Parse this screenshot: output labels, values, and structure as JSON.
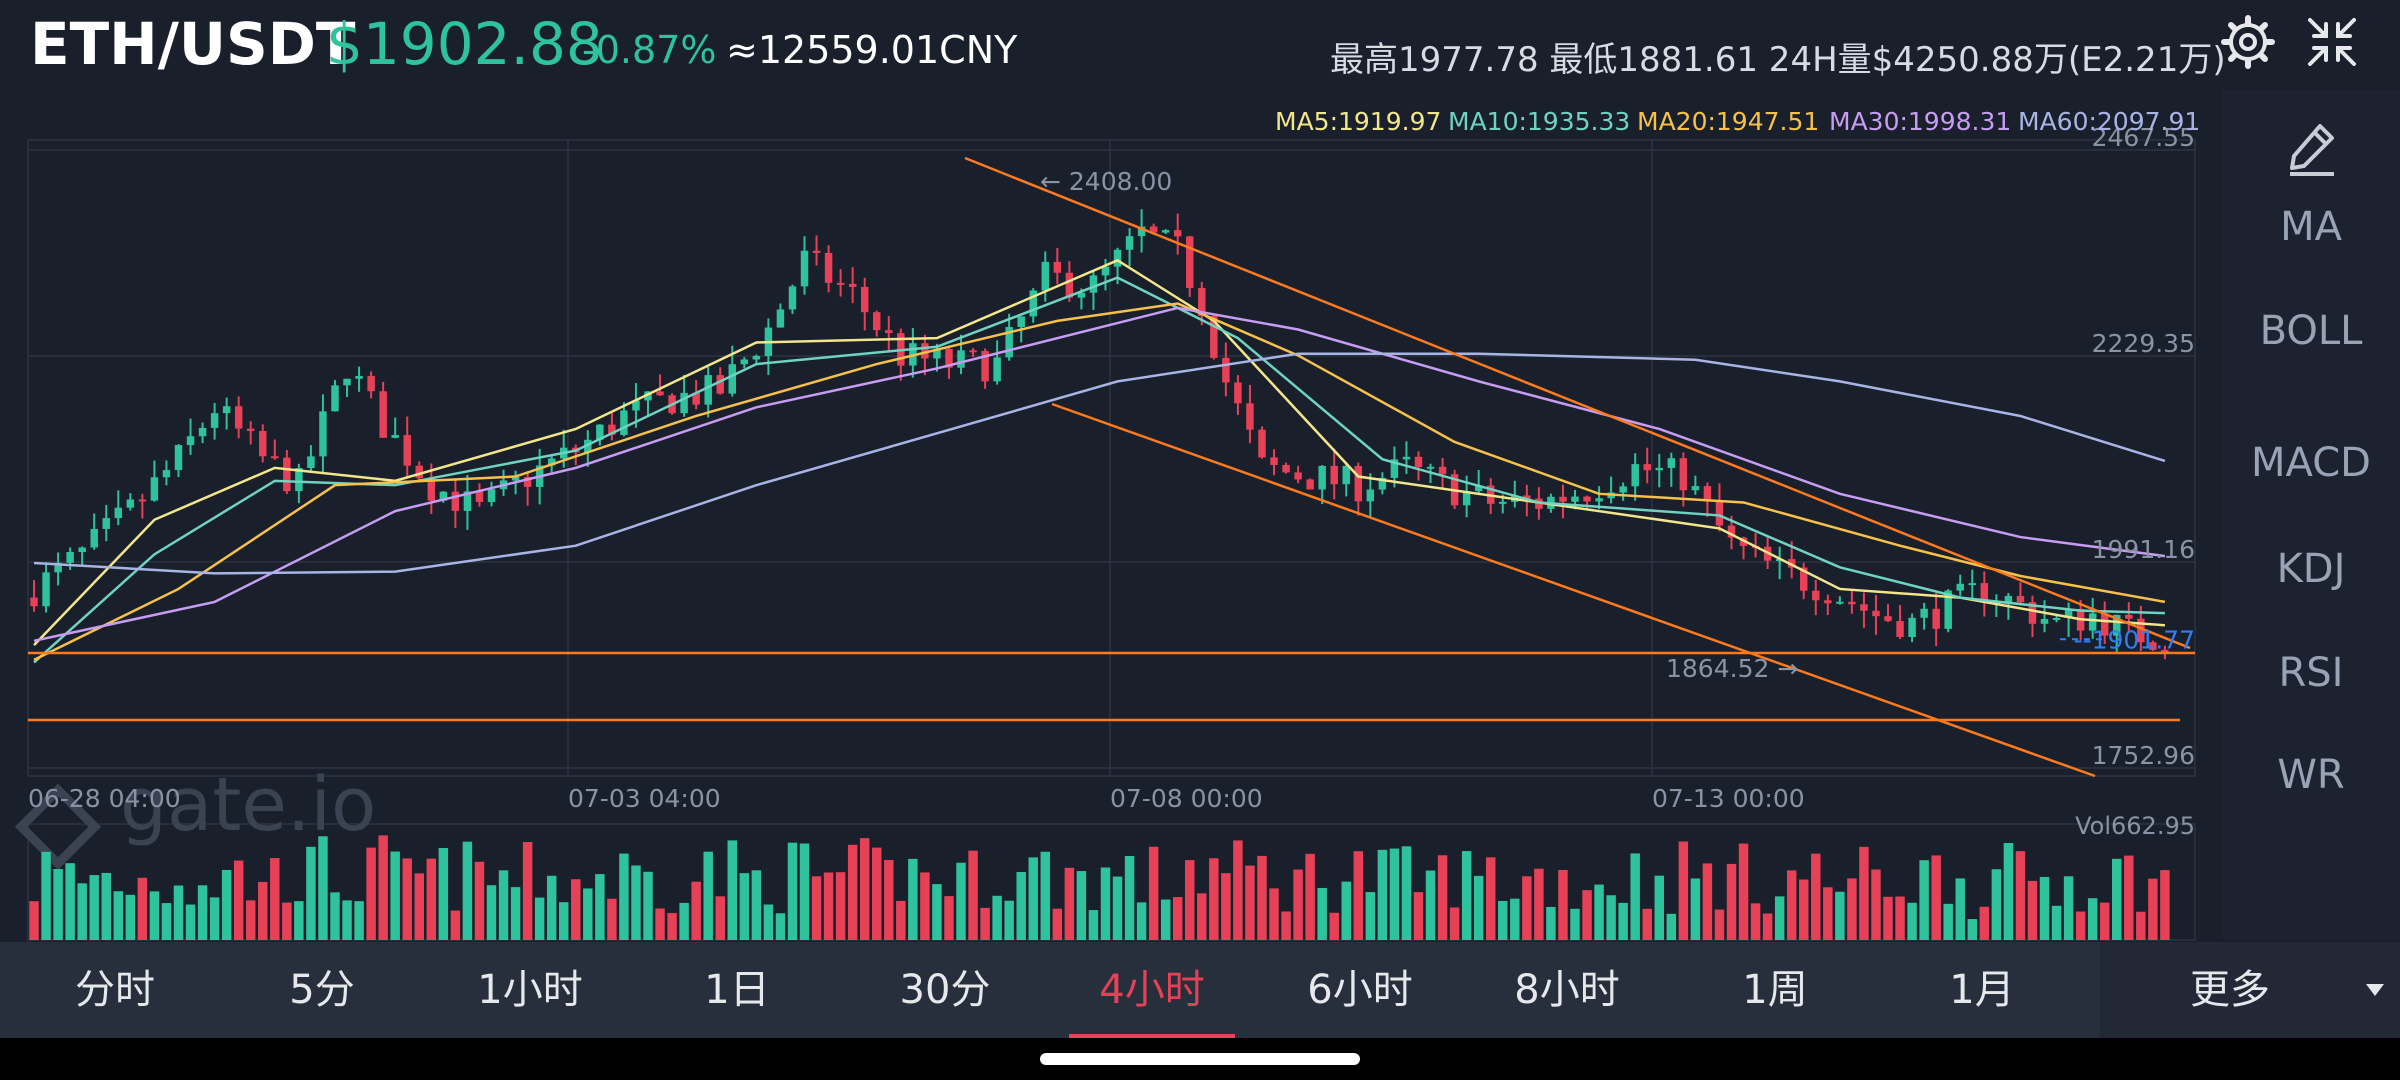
{
  "header": {
    "pair": "ETH/USDT",
    "price": "$1902.88",
    "change": "-0.87%",
    "cny": "≈12559.01CNY",
    "stats": "最高1977.78  最低1881.61  24H量$4250.88万(E2.21万)",
    "icons": [
      "gear-icon",
      "collapse-icon"
    ]
  },
  "colors": {
    "up": "#2ec39c",
    "down": "#e64156",
    "ma5": "#f2e68b",
    "ma10": "#6fd3c2",
    "ma20": "#f6c14a",
    "ma30": "#c79cf2",
    "ma60": "#a9b4e6",
    "trend": "#ff7a1c",
    "background": "#1a1f2c"
  },
  "ma_legend": [
    {
      "label": "MA5:1919.97",
      "color": "#f2e68b"
    },
    {
      "label": "MA10:1935.33",
      "color": "#6fd3c2"
    },
    {
      "label": "MA20:1947.51",
      "color": "#f6c14a"
    },
    {
      "label": "MA30:1998.31",
      "color": "#c79cf2"
    },
    {
      "label": "MA60:2097.91",
      "color": "#a9b4e6"
    }
  ],
  "chart_data": {
    "type": "candlestick",
    "interval": "4小时",
    "y_ticks": [
      "2467.55",
      "2229.35",
      "1991.16",
      "1752.96"
    ],
    "ylim": [
      1752.96,
      2467.55
    ],
    "x_ticks": [
      "06-28 04:00",
      "07-03 04:00",
      "07-08 00:00",
      "07-13 00:00"
    ],
    "current_price_label": "1901.77",
    "high_annotation": "2408.00",
    "low_annotation": "1864.52",
    "volume_label": "Vol662.95",
    "close_points": [
      [
        0,
        1960
      ],
      [
        4,
        2000
      ],
      [
        8,
        2050
      ],
      [
        12,
        2110
      ],
      [
        15,
        2170
      ],
      [
        19,
        2110
      ],
      [
        22,
        2080
      ],
      [
        26,
        2220
      ],
      [
        29,
        2150
      ],
      [
        33,
        2080
      ],
      [
        37,
        2050
      ],
      [
        41,
        2090
      ],
      [
        45,
        2120
      ],
      [
        49,
        2160
      ],
      [
        53,
        2180
      ],
      [
        57,
        2190
      ],
      [
        61,
        2260
      ],
      [
        64,
        2340
      ],
      [
        68,
        2300
      ],
      [
        72,
        2230
      ],
      [
        76,
        2220
      ],
      [
        80,
        2220
      ],
      [
        84,
        2320
      ],
      [
        88,
        2310
      ],
      [
        92,
        2370
      ],
      [
        95,
        2350
      ],
      [
        97,
        2290
      ],
      [
        99,
        2200
      ],
      [
        102,
        2100
      ],
      [
        106,
        2090
      ],
      [
        110,
        2080
      ],
      [
        114,
        2100
      ],
      [
        117,
        2080
      ],
      [
        121,
        2060
      ],
      [
        125,
        2060
      ],
      [
        129,
        2075
      ],
      [
        133,
        2100
      ],
      [
        137,
        2090
      ],
      [
        141,
        2010
      ],
      [
        145,
        1980
      ],
      [
        149,
        1960
      ],
      [
        153,
        1930
      ],
      [
        156,
        1920
      ],
      [
        159,
        1940
      ],
      [
        162,
        1960
      ],
      [
        165,
        1940
      ],
      [
        168,
        1920
      ],
      [
        171,
        1930
      ],
      [
        174,
        1910
      ],
      [
        177,
        1902
      ]
    ],
    "ma_series": {
      "MA5": [
        [
          0,
          1895
        ],
        [
          10,
          2040
        ],
        [
          20,
          2100
        ],
        [
          30,
          2085
        ],
        [
          45,
          2145
        ],
        [
          60,
          2245
        ],
        [
          75,
          2250
        ],
        [
          90,
          2340
        ],
        [
          98,
          2270
        ],
        [
          110,
          2090
        ],
        [
          125,
          2060
        ],
        [
          140,
          2030
        ],
        [
          150,
          1960
        ],
        [
          160,
          1950
        ],
        [
          170,
          1925
        ],
        [
          177,
          1918
        ]
      ],
      "MA10": [
        [
          0,
          1875
        ],
        [
          10,
          2000
        ],
        [
          20,
          2085
        ],
        [
          30,
          2080
        ],
        [
          45,
          2120
        ],
        [
          60,
          2220
        ],
        [
          75,
          2240
        ],
        [
          90,
          2320
        ],
        [
          100,
          2250
        ],
        [
          112,
          2110
        ],
        [
          125,
          2060
        ],
        [
          140,
          2045
        ],
        [
          150,
          1985
        ],
        [
          160,
          1950
        ],
        [
          170,
          1935
        ],
        [
          177,
          1932
        ]
      ],
      "MA20": [
        [
          0,
          1878
        ],
        [
          12,
          1960
        ],
        [
          25,
          2080
        ],
        [
          40,
          2090
        ],
        [
          55,
          2160
        ],
        [
          70,
          2220
        ],
        [
          85,
          2270
        ],
        [
          95,
          2290
        ],
        [
          105,
          2230
        ],
        [
          118,
          2130
        ],
        [
          130,
          2070
        ],
        [
          142,
          2060
        ],
        [
          155,
          2010
        ],
        [
          165,
          1975
        ],
        [
          177,
          1945
        ]
      ],
      "MA30": [
        [
          0,
          1900
        ],
        [
          15,
          1945
        ],
        [
          30,
          2050
        ],
        [
          45,
          2100
        ],
        [
          60,
          2170
        ],
        [
          75,
          2215
        ],
        [
          95,
          2285
        ],
        [
          105,
          2260
        ],
        [
          120,
          2200
        ],
        [
          135,
          2145
        ],
        [
          150,
          2070
        ],
        [
          165,
          2020
        ],
        [
          177,
          1998
        ]
      ],
      "MA60": [
        [
          0,
          1990
        ],
        [
          15,
          1978
        ],
        [
          30,
          1980
        ],
        [
          45,
          2010
        ],
        [
          60,
          2080
        ],
        [
          75,
          2140
        ],
        [
          90,
          2200
        ],
        [
          105,
          2232
        ],
        [
          120,
          2232
        ],
        [
          138,
          2225
        ],
        [
          150,
          2200
        ],
        [
          165,
          2160
        ],
        [
          177,
          2108
        ]
      ]
    }
  },
  "sidebar": {
    "items": [
      {
        "label": "MA",
        "active": true
      },
      {
        "label": "BOLL",
        "active": false
      },
      {
        "label": "MACD",
        "active": true
      },
      {
        "label": "KDJ",
        "active": false
      },
      {
        "label": "RSI",
        "active": false
      },
      {
        "label": "WR",
        "active": false
      }
    ],
    "draw_icon": "pencil-icon"
  },
  "tabs": [
    {
      "label": "分时",
      "active": false
    },
    {
      "label": "5分",
      "active": false
    },
    {
      "label": "1小时",
      "active": false
    },
    {
      "label": "1日",
      "active": false
    },
    {
      "label": "30分",
      "active": false
    },
    {
      "label": "4小时",
      "active": true
    },
    {
      "label": "6小时",
      "active": false
    },
    {
      "label": "8小时",
      "active": false
    },
    {
      "label": "1周",
      "active": false
    },
    {
      "label": "1月",
      "active": false
    }
  ],
  "more": {
    "label": "更多",
    "icon": "caret-down-icon"
  },
  "watermark": "gate.io"
}
